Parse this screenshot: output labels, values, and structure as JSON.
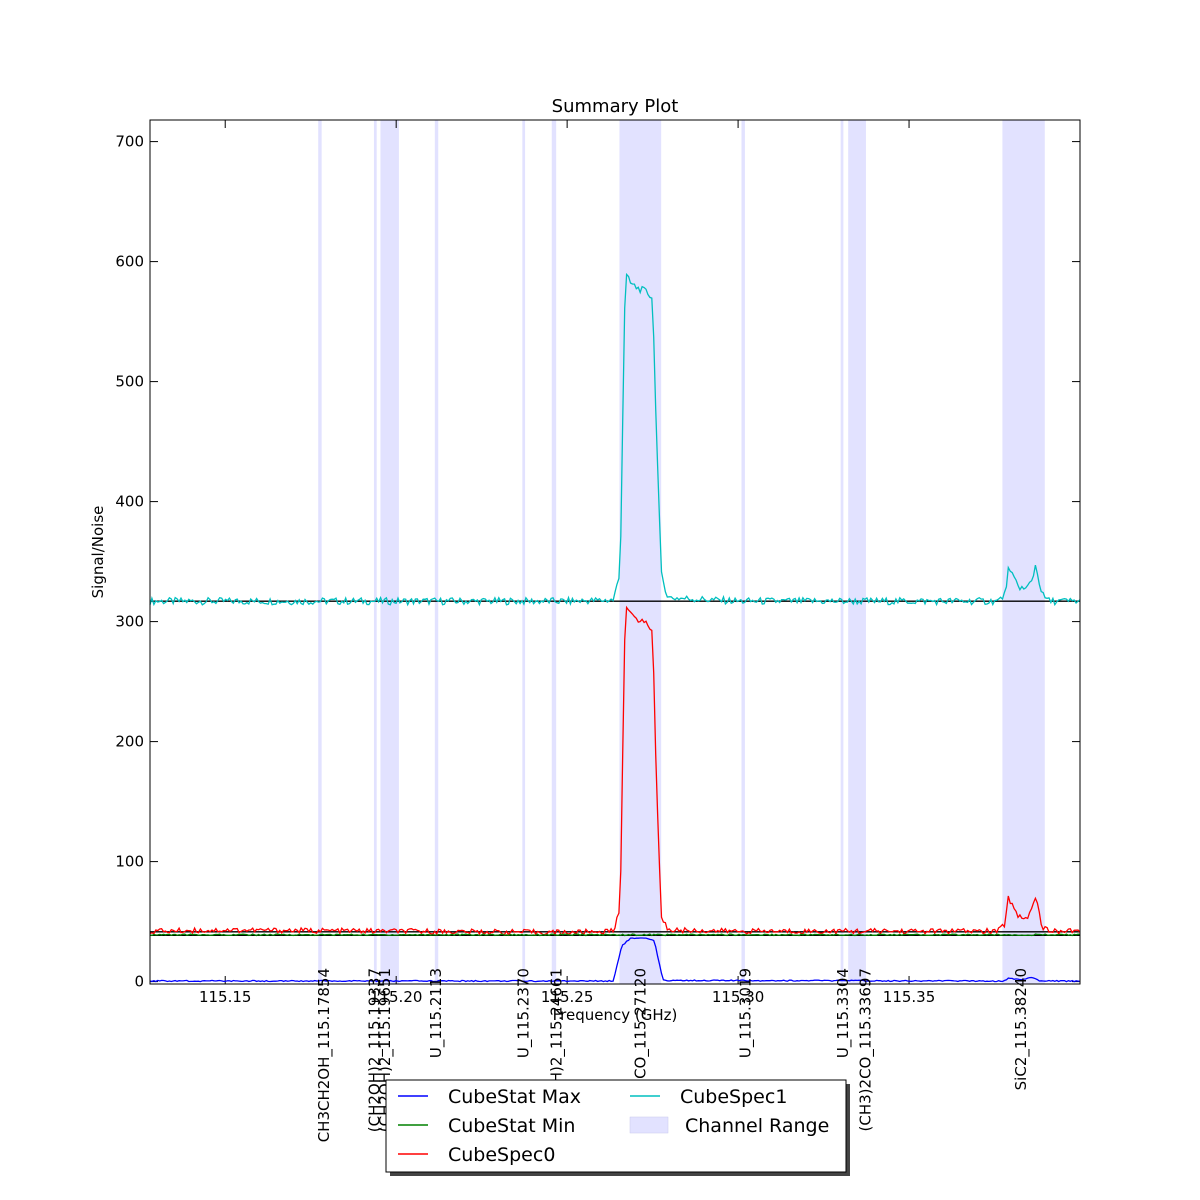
{
  "chart_data": {
    "type": "line",
    "title": "Summary Plot",
    "xlabel": "Frequency (GHz)",
    "ylabel": "Signal/Noise",
    "xlim": [
      115.128,
      115.4
    ],
    "ylim": [
      -2,
      718
    ],
    "xticks": [
      "115.15",
      "115.20",
      "115.25",
      "115.30",
      "115.35"
    ],
    "yticks": [
      "0",
      "100",
      "200",
      "300",
      "400",
      "500",
      "600",
      "700"
    ],
    "grid": false,
    "legend_position": "lower center",
    "colors": {
      "cubestat_max": "#0000ff",
      "cubestat_min": "#008000",
      "cubespec0": "#ff0000",
      "cubespec1": "#00bfbf",
      "channel_range": "#e2e2ff",
      "baseline": "#000000"
    },
    "legend": [
      {
        "name": "CubeStat Max",
        "kind": "line",
        "color": "#0000ff"
      },
      {
        "name": "CubeStat Min",
        "kind": "line",
        "color": "#008000"
      },
      {
        "name": "CubeSpec0",
        "kind": "line",
        "color": "#ff0000"
      },
      {
        "name": "CubeSpec1",
        "kind": "line",
        "color": "#00bfbf"
      },
      {
        "name": "Channel Range",
        "kind": "patch",
        "color": "#e2e2ff"
      }
    ],
    "channel_ranges": [
      [
        115.1772,
        115.1782
      ],
      [
        115.1935,
        115.1943
      ],
      [
        115.1954,
        115.2008
      ],
      [
        115.2113,
        115.2123
      ],
      [
        115.2369,
        115.2377
      ],
      [
        115.2455,
        115.2468
      ],
      [
        115.2653,
        115.2775
      ],
      [
        115.301,
        115.302
      ],
      [
        115.33,
        115.3308
      ],
      [
        115.3322,
        115.3374
      ],
      [
        115.3773,
        115.3897
      ]
    ],
    "line_markers": [
      {
        "label": "CH3CH2OH_115.17854",
        "x": 115.17854
      },
      {
        "label": "(CH2OH)2_115.19337",
        "x": 115.19337
      },
      {
        "label": "(CH2OH)2_115.19651",
        "x": 115.19651
      },
      {
        "label": "U_115.2113",
        "x": 115.2113
      },
      {
        "label": "U_115.2370",
        "x": 115.237
      },
      {
        "label": "(CH2OH)2_115.24661",
        "x": 115.24661
      },
      {
        "label": "CO_115.27120",
        "x": 115.2712
      },
      {
        "label": "U_115.3019",
        "x": 115.3019
      },
      {
        "label": "U_115.3304",
        "x": 115.3304
      },
      {
        "label": "(CH3)2CO_115.33697",
        "x": 115.33697
      },
      {
        "label": "SiC2_115.38240",
        "x": 115.3824
      }
    ],
    "baselines": [
      317,
      41.5,
      38.5
    ],
    "series": [
      {
        "name": "CubeSpec1",
        "x": [
          115.128,
          115.15,
          115.2,
          115.25,
          115.2635,
          115.2655,
          115.267,
          115.2685,
          115.2705,
          115.273,
          115.275,
          115.276,
          115.2775,
          115.2795,
          115.3,
          115.35,
          115.376,
          115.378,
          115.379,
          115.382,
          115.384,
          115.386,
          115.387,
          115.389,
          115.391,
          115.4
        ],
        "y": [
          317,
          317,
          317,
          317,
          318,
          340,
          590,
          582,
          578,
          575,
          570,
          470,
          340,
          320,
          317,
          317,
          317,
          322,
          343,
          330,
          326,
          335,
          347,
          322,
          317,
          317
        ]
      },
      {
        "name": "CubeSpec0",
        "x": [
          115.128,
          115.15,
          115.2,
          115.25,
          115.2635,
          115.2655,
          115.267,
          115.2685,
          115.2705,
          115.273,
          115.275,
          115.276,
          115.2775,
          115.2795,
          115.3,
          115.35,
          115.376,
          115.378,
          115.379,
          115.382,
          115.384,
          115.386,
          115.387,
          115.389,
          115.391,
          115.4
        ],
        "y": [
          42,
          43,
          42,
          41,
          42,
          60,
          315,
          306,
          302,
          299,
          293,
          180,
          55,
          43,
          42,
          42,
          42,
          48,
          70,
          55,
          52,
          60,
          72,
          45,
          42,
          42
        ]
      },
      {
        "name": "CubeStat Min",
        "x": [
          115.128,
          115.4
        ],
        "y": [
          39,
          39
        ]
      },
      {
        "name": "CubeStat Max",
        "x": [
          115.128,
          115.2635,
          115.266,
          115.2685,
          115.273,
          115.2755,
          115.278,
          115.378,
          115.379,
          115.381,
          115.384,
          115.386,
          115.388,
          115.4
        ],
        "y": [
          0.5,
          0.5,
          30,
          36,
          36,
          34,
          1,
          0.5,
          3,
          2,
          2,
          4,
          0.5,
          0.5
        ]
      }
    ]
  }
}
